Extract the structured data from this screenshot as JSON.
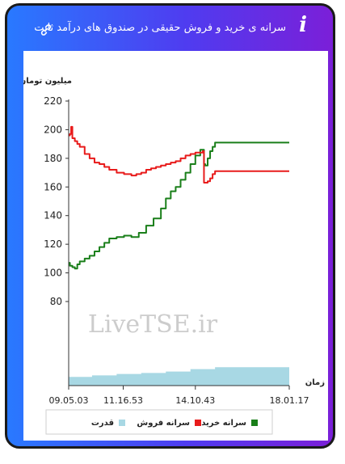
{
  "header": {
    "title": "سرانه ی خرید و فروش حقیقی در صندوق های درآمد ثابت",
    "info_icon": "info-icon",
    "link_icon": "link-icon"
  },
  "watermark": "LiveTSE.ir",
  "colors": {
    "buy": "#1a7f1a",
    "sell": "#e81b1b",
    "power": "#a8d8e4"
  },
  "chart_data": {
    "type": "line",
    "ylabel": "میلیون تومان",
    "xlabel": "زمان",
    "ylim": [
      80,
      220
    ],
    "yticks": [
      80,
      100,
      120,
      140,
      160,
      180,
      200,
      220
    ],
    "xlim": [
      9.05,
      18.017
    ],
    "xticks": [
      {
        "value": 9.05,
        "label": "09.05.03"
      },
      {
        "value": 11.2667,
        "label": "11.16.53"
      },
      {
        "value": 14.2,
        "label": "14.10.43"
      },
      {
        "value": 18.017,
        "label": "18.01.17"
      }
    ],
    "grid": false,
    "legend_position": "bottom",
    "series": [
      {
        "name": "سرانه خرید",
        "x": [
          9.05,
          9.1,
          9.2,
          9.3,
          9.4,
          9.5,
          9.7,
          9.9,
          10.1,
          10.3,
          10.5,
          10.7,
          11.0,
          11.3,
          11.6,
          11.9,
          12.2,
          12.5,
          12.8,
          13.0,
          13.2,
          13.4,
          13.6,
          13.8,
          14.0,
          14.2,
          14.4,
          14.55,
          14.6,
          14.7,
          14.8,
          14.9,
          15.0,
          18.017
        ],
        "y": [
          107,
          105,
          104,
          103,
          106,
          108,
          110,
          112,
          115,
          118,
          121,
          124,
          125,
          126,
          125,
          128,
          133,
          138,
          145,
          152,
          157,
          160,
          165,
          170,
          176,
          182,
          186,
          176,
          175,
          180,
          185,
          188,
          191,
          191
        ]
      },
      {
        "name": "سرانه فروش",
        "x": [
          9.05,
          9.1,
          9.15,
          9.2,
          9.3,
          9.4,
          9.5,
          9.7,
          9.9,
          10.1,
          10.3,
          10.5,
          10.7,
          11.0,
          11.3,
          11.6,
          11.8,
          12.0,
          12.2,
          12.4,
          12.6,
          12.8,
          13.0,
          13.2,
          13.4,
          13.6,
          13.8,
          14.0,
          14.2,
          14.5,
          14.55,
          14.7,
          14.8,
          14.9,
          15.0,
          18.017
        ],
        "y": [
          196,
          197,
          202,
          194,
          192,
          190,
          188,
          183,
          180,
          177,
          176,
          174,
          172,
          170,
          169,
          168,
          169,
          170,
          172,
          173,
          174,
          175,
          176,
          177,
          178,
          180,
          182,
          183,
          184,
          185,
          163,
          164,
          166,
          169,
          171,
          171
        ]
      },
      {
        "name": "قدرت",
        "type": "area",
        "x": [
          9.05,
          10.0,
          11.0,
          12.0,
          13.0,
          14.0,
          15.0,
          18.017
        ],
        "y": [
          9,
          10.5,
          12,
          13,
          14.5,
          17,
          19,
          19
        ]
      }
    ]
  }
}
